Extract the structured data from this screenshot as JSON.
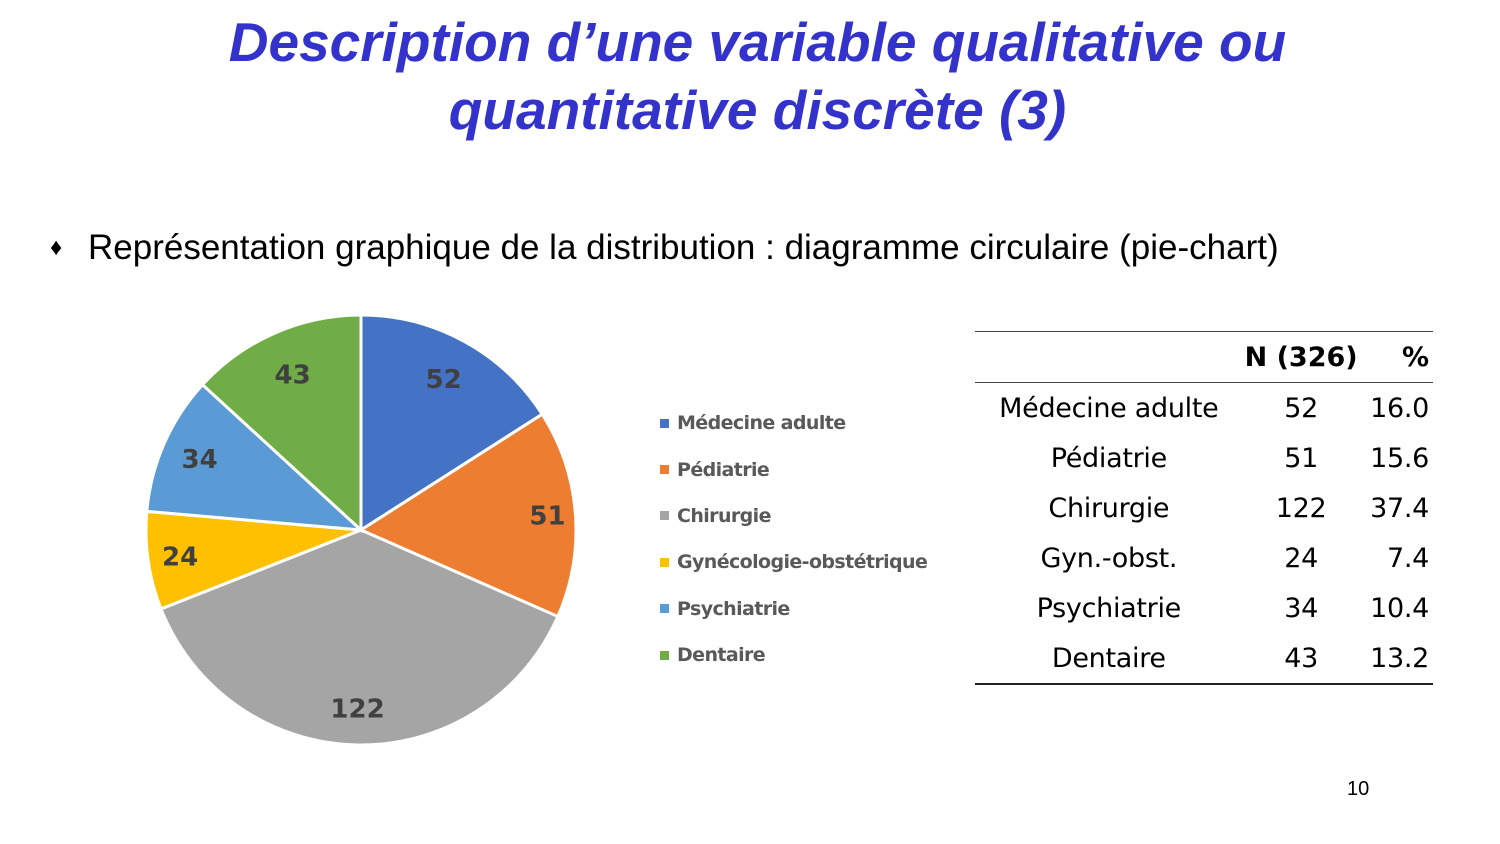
{
  "slide": {
    "title_line1": "Description d’une variable qualitative ou",
    "title_line2": "quantitative discrète (3)",
    "bullet_symbol": "♦",
    "bullet_text": "Représentation graphique de la distribution : diagramme circulaire (pie-chart)",
    "page_number": "10",
    "title_color": "#3333cc"
  },
  "legend": {
    "items": [
      {
        "label": "Médecine adulte",
        "color": "#4472c4"
      },
      {
        "label": "Pédiatrie",
        "color": "#ed7d31"
      },
      {
        "label": "Chirurgie",
        "color": "#a5a5a5"
      },
      {
        "label": "Gynécologie-obstétrique",
        "color": "#ffc000"
      },
      {
        "label": "Psychiatrie",
        "color": "#5b9bd5"
      },
      {
        "label": "Dentaire",
        "color": "#70ad47"
      }
    ]
  },
  "table": {
    "header": {
      "category": "",
      "n": "N (326)",
      "pct": "%"
    },
    "rows": [
      {
        "category": "Médecine adulte",
        "n": "52",
        "pct": "16.0"
      },
      {
        "category": "Pédiatrie",
        "n": "51",
        "pct": "15.6"
      },
      {
        "category": "Chirurgie",
        "n": "122",
        "pct": "37.4"
      },
      {
        "category": "Gyn.-obst.",
        "n": "24",
        "pct": "7.4"
      },
      {
        "category": "Psychiatrie",
        "n": "34",
        "pct": "10.4"
      },
      {
        "category": "Dentaire",
        "n": "43",
        "pct": "13.2"
      }
    ]
  },
  "chart_data": {
    "type": "pie",
    "title": "",
    "categories": [
      "Médecine adulte",
      "Pédiatrie",
      "Chirurgie",
      "Gynécologie-obstétrique",
      "Psychiatrie",
      "Dentaire"
    ],
    "values": [
      52,
      51,
      122,
      24,
      34,
      43
    ],
    "data_labels": [
      "52",
      "51",
      "122",
      "24",
      "34",
      "43"
    ],
    "colors": [
      "#4472c4",
      "#ed7d31",
      "#a5a5a5",
      "#ffc000",
      "#5b9bd5",
      "#70ad47"
    ],
    "total": 326,
    "start_angle": "12 o'clock",
    "direction": "clockwise",
    "legend_position": "right"
  }
}
